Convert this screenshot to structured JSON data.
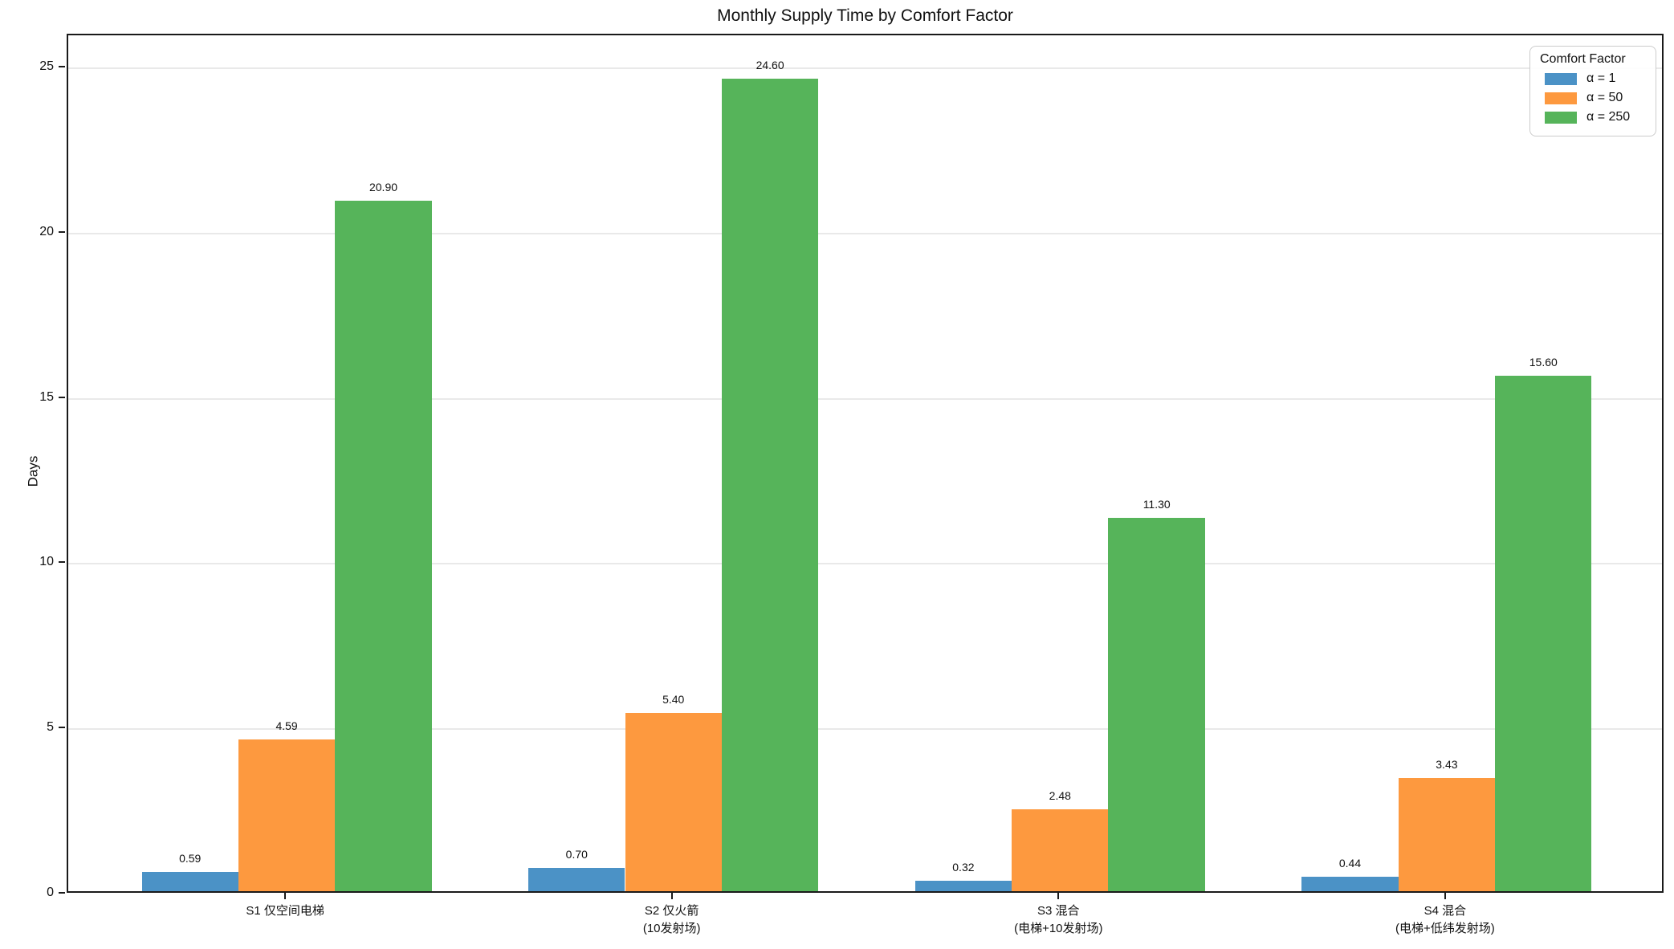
{
  "chart_data": {
    "type": "bar",
    "title": "Monthly Supply Time by Comfort Factor",
    "xlabel": "",
    "ylabel": "Days",
    "legend_title": "Comfort Factor",
    "legend_position": "upper right",
    "grid": "horizontal light gray at y ticks",
    "ylim": [
      0,
      26
    ],
    "yticks": [
      0,
      5,
      10,
      15,
      20,
      25
    ],
    "categories": [
      [
        "S1 仅空间电梯"
      ],
      [
        "S2 仅火箭",
        "(10发射场)"
      ],
      [
        "S3 混合",
        "(电梯+10发射场)"
      ],
      [
        "S4 混合",
        "(电梯+低纬发射场)"
      ]
    ],
    "series": [
      {
        "name": "α = 1",
        "color": "#4B92C6",
        "values": [
          0.59,
          0.7,
          0.32,
          0.44
        ],
        "value_labels": [
          "0.59",
          "0.70",
          "0.32",
          "0.44"
        ]
      },
      {
        "name": "α = 50",
        "color": "#FD993F",
        "values": [
          4.59,
          5.4,
          2.48,
          3.43
        ],
        "value_labels": [
          "4.59",
          "5.40",
          "2.48",
          "3.43"
        ]
      },
      {
        "name": "α = 250",
        "color": "#56B45A",
        "values": [
          20.9,
          24.6,
          11.3,
          15.6
        ],
        "value_labels": [
          "20.90",
          "24.60",
          "11.30",
          "15.60"
        ]
      }
    ]
  }
}
